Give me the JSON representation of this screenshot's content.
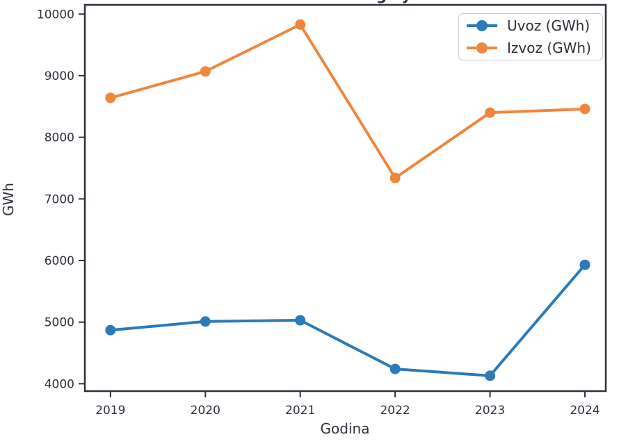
{
  "figure": {
    "title_fragment": "g y"
  },
  "chart_data": {
    "type": "line",
    "title": "",
    "xlabel": "Godina",
    "ylabel": "GWh",
    "x": [
      2019,
      2020,
      2021,
      2022,
      2023,
      2024
    ],
    "xticks": [
      2019,
      2020,
      2021,
      2022,
      2023,
      2024
    ],
    "yticks": [
      4000,
      5000,
      6000,
      7000,
      8000,
      9000,
      10000
    ],
    "xlim": [
      2018.73,
      2024.22
    ],
    "ylim": [
      3880,
      10150
    ],
    "grid": false,
    "legend_position": "upper right",
    "marker": "circle",
    "axis_color": "#2c313c",
    "tick_label_color": "#2d323c",
    "series": [
      {
        "name": "Uvoz (GWh)",
        "color": "#2b7ab9",
        "values": [
          4870,
          5010,
          5030,
          4240,
          4130,
          5930
        ]
      },
      {
        "name": "Izvoz (GWh)",
        "color": "#f0863c",
        "values": [
          8640,
          9070,
          9830,
          7340,
          8400,
          8460
        ]
      }
    ]
  }
}
